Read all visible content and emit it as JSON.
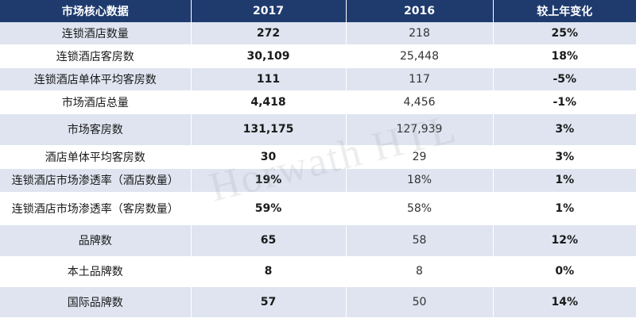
{
  "table": {
    "headers": [
      "市场核心数据",
      "2017",
      "2016",
      "较上年变化"
    ],
    "rows": [
      {
        "label": "连锁酒店数量",
        "v2017": "272",
        "v2016": "218",
        "change": "25%"
      },
      {
        "label": "连锁酒店客房数",
        "v2017": "30,109",
        "v2016": "25,448",
        "change": "18%"
      },
      {
        "label": "连锁酒店单体平均客房数",
        "v2017": "111",
        "v2016": "117",
        "change": "-5%"
      },
      {
        "label": "市场酒店总量",
        "v2017": "4,418",
        "v2016": "4,456",
        "change": "-1%"
      },
      {
        "label": "市场客房数",
        "v2017": "131,175",
        "v2016": "127,939",
        "change": "3%"
      },
      {
        "label": "酒店单体平均客房数",
        "v2017": "30",
        "v2016": "29",
        "change": "3%"
      },
      {
        "label": "连锁酒店市场渗透率（酒店数量）",
        "v2017": "19%",
        "v2016": "18%",
        "change": "1%"
      },
      {
        "label": "连锁酒店市场渗透率（客房数量）",
        "v2017": "59%",
        "v2016": "58%",
        "change": "1%"
      },
      {
        "label": "品牌数",
        "v2017": "65",
        "v2016": "58",
        "change": "12%"
      },
      {
        "label": "本土品牌数",
        "v2017": "8",
        "v2016": "8",
        "change": "0%"
      },
      {
        "label": "国际品牌数",
        "v2017": "57",
        "v2016": "50",
        "change": "14%"
      }
    ]
  },
  "watermark": "Horwath HTL"
}
